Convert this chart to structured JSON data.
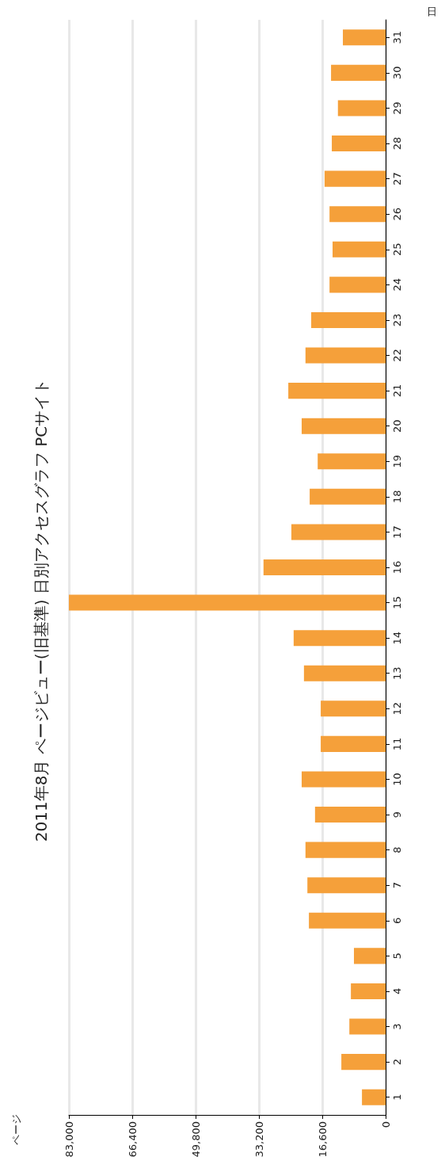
{
  "chart_data": {
    "type": "bar",
    "orientation": "horizontal",
    "title": "2011年8月 ページビュー(旧基準) 日別アクセスグラフ PCサイト",
    "xlabel": "日",
    "ylabel": "ページ",
    "categories": [
      "31",
      "30",
      "29",
      "28",
      "27",
      "26",
      "25",
      "24",
      "23",
      "22",
      "21",
      "20",
      "19",
      "18",
      "17",
      "16",
      "15",
      "14",
      "13",
      "12",
      "11",
      "10",
      "9",
      "8",
      "7",
      "6",
      "5",
      "4",
      "3",
      "2",
      "1"
    ],
    "values": [
      11200,
      14300,
      12500,
      14100,
      16000,
      14700,
      13900,
      14700,
      19500,
      21000,
      25500,
      22000,
      17800,
      19900,
      24700,
      32000,
      83000,
      24100,
      21400,
      17000,
      17000,
      22000,
      18500,
      21000,
      20500,
      20100,
      8300,
      9100,
      9500,
      11600,
      6200
    ],
    "color": "#f5a03a",
    "xlim": [
      83000,
      0
    ],
    "xticks": [
      {
        "value": 83000,
        "label": "83,000"
      },
      {
        "value": 66400,
        "label": "66,400"
      },
      {
        "value": 49800,
        "label": "49,800"
      },
      {
        "value": 33200,
        "label": "33,200"
      },
      {
        "value": 16600,
        "label": "16,600"
      },
      0
    ],
    "grid": "x"
  }
}
